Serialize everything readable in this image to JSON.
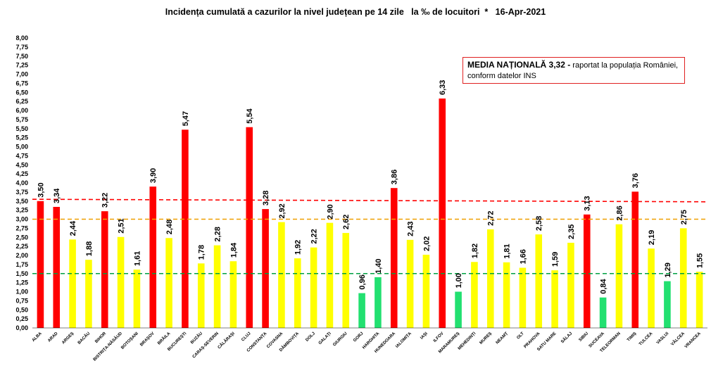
{
  "colors": {
    "red": "#ff0000",
    "yellow": "#ffff00",
    "green": "#22e070",
    "line_red": "#ff0000",
    "line_orange": "#f0a000",
    "line_green": "#00a040"
  },
  "note": {
    "bold": "MEDIA NAȚIONALĂ 3,32 -",
    "rest": " raportat la populația României, conform datelor INS"
  },
  "chart_data": {
    "type": "bar",
    "title": "Incidența cumulată a cazurilor la nivel județean pe 14 zile   la ‰ de locuitori  *   16-Apr-2021",
    "xlabel": "",
    "ylabel": "",
    "ylim": [
      0,
      8
    ],
    "ytick_step": 0.25,
    "grid": false,
    "legend": "none",
    "categories": [
      "ALBA",
      "ARAD",
      "ARGEȘ",
      "BACĂU",
      "BIHOR",
      "BISTRIȚA-NĂSĂUD",
      "BOTOȘANI",
      "BRAȘOV",
      "BRĂILA",
      "BUCUREȘTI",
      "BUZĂU",
      "CARAȘ-SEVERIN",
      "CĂLĂRAȘI",
      "CLUJ",
      "CONSTANȚA",
      "COVASNA",
      "DÂMBOVIȚA",
      "DOLJ",
      "GALAȚI",
      "GIURGIU",
      "GORJ",
      "HARGHITA",
      "HUNEDOARA",
      "IALOMIȚA",
      "IAȘI",
      "ILFOV",
      "MARAMUREȘ",
      "MEHEDINȚI",
      "MUREȘ",
      "NEAMȚ",
      "OLT",
      "PRAHOVA",
      "SATU MARE",
      "SĂLAJ",
      "SIBIU",
      "SUCEAVA",
      "TELEORMAN",
      "TIMIȘ",
      "TULCEA",
      "VASLUI",
      "VÂLCEA",
      "VRANCEA"
    ],
    "values": [
      3.5,
      3.34,
      2.44,
      1.88,
      3.22,
      2.51,
      1.61,
      3.9,
      2.48,
      5.47,
      1.78,
      2.28,
      1.84,
      5.54,
      3.28,
      2.92,
      1.92,
      2.22,
      2.9,
      2.62,
      0.96,
      1.4,
      3.86,
      2.43,
      2.02,
      6.33,
      1.0,
      1.82,
      2.72,
      1.81,
      1.66,
      2.58,
      1.59,
      2.35,
      3.13,
      0.84,
      2.86,
      3.76,
      2.19,
      1.29,
      2.75,
      1.55
    ],
    "value_labels": [
      "3,50",
      "3,34",
      "2,44",
      "1,88",
      "3,22",
      "2,51",
      "1,61",
      "3,90",
      "2,48",
      "5,47",
      "1,78",
      "2,28",
      "1,84",
      "5,54",
      "3,28",
      "2,92",
      "1,92",
      "2,22",
      "2,90",
      "2,62",
      "0,96",
      "1,40",
      "3,86",
      "2,43",
      "2,02",
      "6,33",
      "1,00",
      "1,82",
      "2,72",
      "1,81",
      "1,66",
      "2,58",
      "1,59",
      "2,35",
      "3,13",
      "0,84",
      "2,86",
      "3,76",
      "2,19",
      "1,29",
      "2,75",
      "1,55"
    ],
    "reference_lines": [
      {
        "value_start": 3.55,
        "value_end": 3.48,
        "color": "red"
      },
      {
        "value_start": 3.0,
        "value_end": 3.0,
        "color": "orange"
      },
      {
        "value_start": 1.5,
        "value_end": 1.5,
        "color": "green"
      }
    ]
  }
}
